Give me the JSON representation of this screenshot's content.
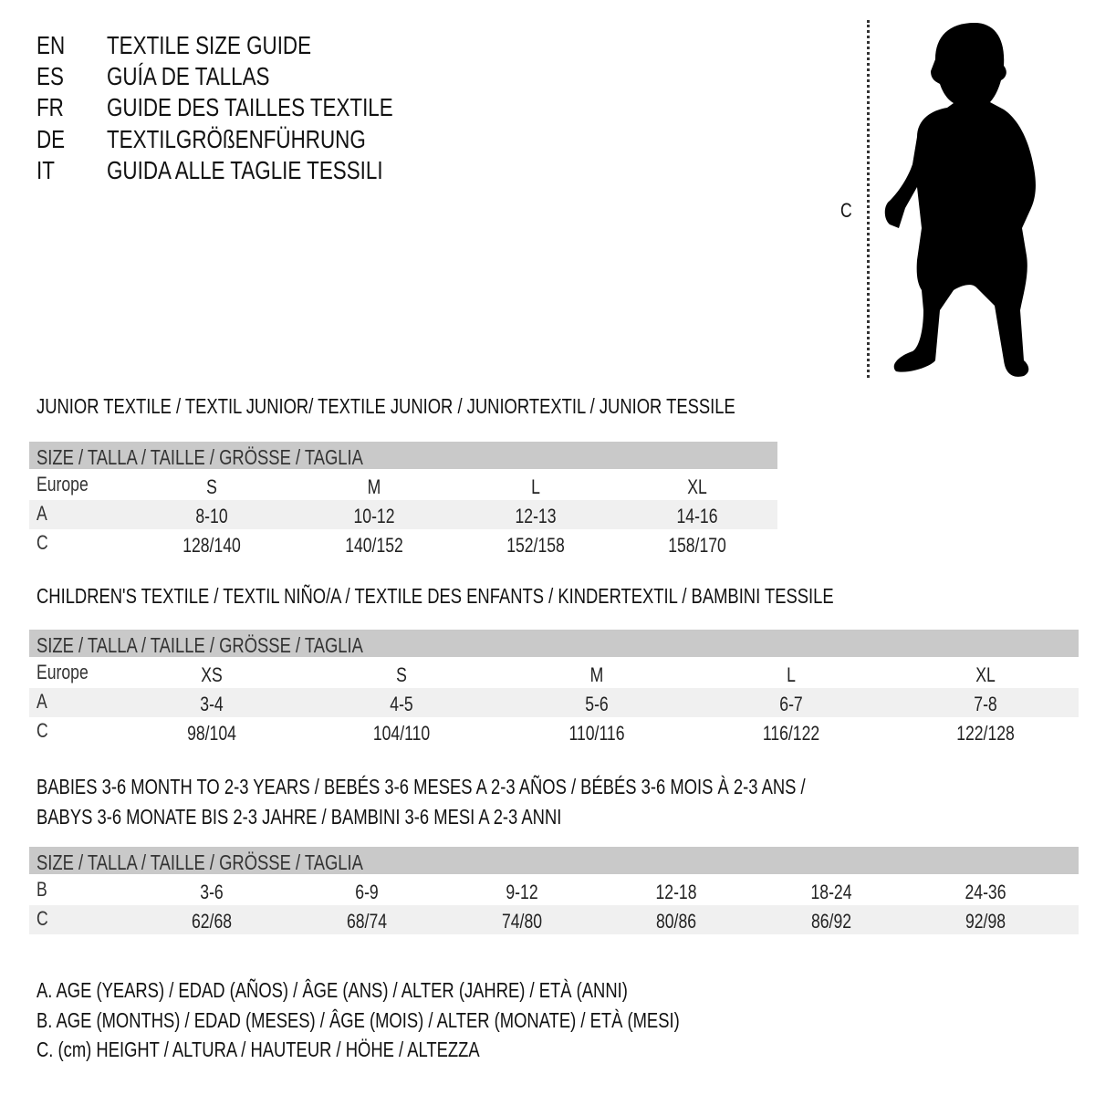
{
  "languages": [
    {
      "code": "EN",
      "title": "TEXTILE SIZE GUIDE"
    },
    {
      "code": "ES",
      "title": "GUÍA DE TALLAS"
    },
    {
      "code": "FR",
      "title": "GUIDE DES TAILLES TEXTILE"
    },
    {
      "code": "DE",
      "title": "TEXTILGRÖßENFÜHRUNG"
    },
    {
      "code": "IT",
      "title": "GUIDA ALLE TAGLIE TESSILI"
    }
  ],
  "figure": {
    "measure_label": "C",
    "icon": "child-silhouette"
  },
  "sections": [
    {
      "title": [
        "JUNIOR TEXTILE / TEXTIL JUNIOR/ TEXTILE JUNIOR / JUNIORTEXTIL / JUNIOR TESSILE"
      ],
      "header": "SIZE / TALLA / TAILLE / GRÖSSE / TAGLIA",
      "rows": [
        {
          "label": "Europe",
          "values": [
            "S",
            "M",
            "L",
            "XL"
          ]
        },
        {
          "label": "A",
          "values": [
            "8-10",
            "10-12",
            "12-13",
            "14-16"
          ]
        },
        {
          "label": "C",
          "values": [
            "128/140",
            "140/152",
            "152/158",
            "158/170"
          ]
        }
      ]
    },
    {
      "title": [
        "CHILDREN'S TEXTILE / TEXTIL NIÑO/A / TEXTILE DES ENFANTS / KINDERTEXTIL / BAMBINI TESSILE"
      ],
      "header": "SIZE / TALLA / TAILLE / GRÖSSE / TAGLIA",
      "rows": [
        {
          "label": "Europe",
          "values": [
            "XS",
            "S",
            "M",
            "L",
            "XL"
          ]
        },
        {
          "label": "A",
          "values": [
            "3-4",
            "4-5",
            "5-6",
            "6-7",
            "7-8"
          ]
        },
        {
          "label": "C",
          "values": [
            "98/104",
            "104/110",
            "110/116",
            "116/122",
            "122/128"
          ]
        }
      ]
    },
    {
      "title": [
        "BABIES 3-6 MONTH TO 2-3 YEARS / BEBÉS 3-6 MESES A 2-3 AÑOS / BÉBÉS 3-6 MOIS À 2-3 ANS /",
        "BABYS 3-6 MONATE BIS 2-3 JAHRE / BAMBINI 3-6 MESI A 2-3 ANNI"
      ],
      "header": "SIZE / TALLA / TAILLE / GRÖSSE / TAGLIA",
      "rows": [
        {
          "label": "B",
          "values": [
            "3-6",
            "6-9",
            "9-12",
            "12-18",
            "18-24",
            "24-36"
          ]
        },
        {
          "label": "C",
          "values": [
            "62/68",
            "68/74",
            "74/80",
            "80/86",
            "86/92",
            "92/98"
          ]
        }
      ]
    }
  ],
  "legend": [
    "A. AGE (YEARS) / EDAD (AÑOS) / ÂGE (ANS) / ALTER (JAHRE) / ETÀ (ANNI)",
    "B. AGE (MONTHS) / EDAD (MESES) / ÂGE (MOIS) / ALTER (MONATE) / ETÀ (MESI)",
    "C. (cm) HEIGHT / ALTURA / HAUTEUR / HÖHE / ALTEZZA"
  ],
  "colors": {
    "header_bg": "#c9c9c9",
    "shade_bg": "#f0f0f0",
    "text": "#111111"
  }
}
